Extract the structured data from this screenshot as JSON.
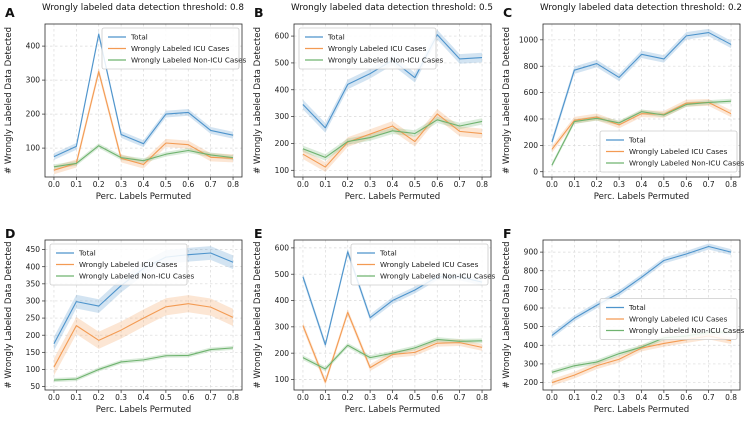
{
  "figure": {
    "background": "#ffffff"
  },
  "colors": {
    "total": "#4e94cc",
    "icu": "#f39b53",
    "non_icu": "#6fb36f",
    "grid": "#d9d9d9",
    "spine": "#2b2b2b",
    "tick_text": "#1a1a1a",
    "legend_border": "#cccccc",
    "legend_bg": "#ffffff"
  },
  "chart_data": [
    {
      "letter": "A",
      "type": "line",
      "title": "Wrongly labeled data detection threshold: 0.8",
      "xlabel": "Perc. Labels Permuted",
      "ylabel": "# Wrongly Labeled Data Detected",
      "x": [
        0.0,
        0.1,
        0.2,
        0.3,
        0.4,
        0.5,
        0.6,
        0.7,
        0.8
      ],
      "xlim": [
        -0.04,
        0.84
      ],
      "ylim": [
        15,
        465
      ],
      "yticks": [
        100,
        200,
        300,
        400
      ],
      "grid": true,
      "legend_pos": "upper-right",
      "series": [
        {
          "name": "Total",
          "color_key": "total",
          "band": 10,
          "values": [
            75,
            105,
            435,
            140,
            113,
            200,
            205,
            152,
            138
          ]
        },
        {
          "name": "Wrongly Labeled ICU Cases",
          "color_key": "icu",
          "band": 12,
          "values": [
            35,
            55,
            325,
            70,
            52,
            115,
            110,
            73,
            70
          ]
        },
        {
          "name": "Wrongly Labeled Non-ICU Cases",
          "color_key": "non_icu",
          "band": 7,
          "values": [
            45,
            55,
            107,
            72,
            63,
            82,
            93,
            80,
            72
          ]
        }
      ]
    },
    {
      "letter": "B",
      "type": "line",
      "title": "Wrongly labeled data detection threshold: 0.5",
      "xlabel": "Perc. Labels Permuted",
      "ylabel": "# Wrongly Labeled Data Detected",
      "x": [
        0.0,
        0.1,
        0.2,
        0.3,
        0.4,
        0.5,
        0.6,
        0.7,
        0.8
      ],
      "xlim": [
        -0.04,
        0.84
      ],
      "ylim": [
        75,
        645
      ],
      "yticks": [
        100,
        200,
        300,
        400,
        500,
        600
      ],
      "grid": true,
      "legend_pos": "upper-left",
      "series": [
        {
          "name": "Total",
          "color_key": "total",
          "band": 18,
          "values": [
            345,
            258,
            420,
            460,
            510,
            445,
            605,
            515,
            520
          ]
        },
        {
          "name": "Wrongly Labeled ICU Cases",
          "color_key": "icu",
          "band": 18,
          "values": [
            160,
            112,
            205,
            235,
            265,
            207,
            310,
            245,
            237
          ]
        },
        {
          "name": "Wrongly Labeled Non-ICU Cases",
          "color_key": "non_icu",
          "band": 12,
          "values": [
            180,
            148,
            207,
            222,
            247,
            237,
            288,
            265,
            282
          ]
        }
      ]
    },
    {
      "letter": "C",
      "type": "line",
      "title": "Wrongly labeled data detection threshold: 0.2",
      "xlabel": "Perc. Labels Permuted",
      "ylabel": "# Wrongly Labeled Data Detected",
      "x": [
        0.0,
        0.1,
        0.2,
        0.3,
        0.4,
        0.5,
        0.6,
        0.7,
        0.8
      ],
      "xlim": [
        -0.04,
        0.84
      ],
      "ylim": [
        -40,
        1120
      ],
      "yticks": [
        0,
        200,
        400,
        600,
        800,
        1000
      ],
      "grid": true,
      "legend_pos": "lower-right",
      "series": [
        {
          "name": "Total",
          "color_key": "total",
          "band": 28,
          "values": [
            225,
            770,
            820,
            715,
            890,
            855,
            1030,
            1055,
            965
          ]
        },
        {
          "name": "Wrongly Labeled ICU Cases",
          "color_key": "icu",
          "band": 26,
          "values": [
            170,
            390,
            415,
            355,
            440,
            435,
            520,
            525,
            440
          ]
        },
        {
          "name": "Wrongly Labeled Non-ICU Cases",
          "color_key": "non_icu",
          "band": 18,
          "values": [
            50,
            380,
            405,
            370,
            455,
            430,
            510,
            525,
            535
          ]
        }
      ]
    },
    {
      "letter": "D",
      "type": "line",
      "title": "",
      "xlabel": "Perc. Labels Permuted",
      "ylabel": "# Wrongly Labeled Data Detected",
      "x": [
        0.0,
        0.1,
        0.2,
        0.3,
        0.4,
        0.5,
        0.6,
        0.7,
        0.8
      ],
      "xlim": [
        -0.04,
        0.84
      ],
      "ylim": [
        40,
        478
      ],
      "yticks": [
        50,
        100,
        150,
        200,
        250,
        300,
        350,
        400,
        450
      ],
      "grid": true,
      "legend_pos": "upper-left",
      "series": [
        {
          "name": "Total",
          "color_key": "total",
          "band": 20,
          "values": [
            175,
            298,
            285,
            345,
            395,
            428,
            435,
            440,
            413
          ]
        },
        {
          "name": "Wrongly Labeled ICU Cases",
          "color_key": "icu",
          "band": 25,
          "values": [
            107,
            228,
            185,
            215,
            250,
            283,
            292,
            282,
            252
          ]
        },
        {
          "name": "Wrongly Labeled Non-ICU Cases",
          "color_key": "non_icu",
          "band": 6,
          "values": [
            69,
            72,
            100,
            122,
            128,
            140,
            141,
            158,
            163
          ]
        }
      ]
    },
    {
      "letter": "E",
      "type": "line",
      "title": "",
      "xlabel": "Perc. Labels Permuted",
      "ylabel": "# Wrongly Labeled Data Detected",
      "x": [
        0.0,
        0.1,
        0.2,
        0.3,
        0.4,
        0.5,
        0.6,
        0.7,
        0.8
      ],
      "xlim": [
        -0.04,
        0.84
      ],
      "ylim": [
        60,
        630
      ],
      "yticks": [
        100,
        200,
        300,
        400,
        500,
        600
      ],
      "grid": true,
      "legend_pos": "upper-right",
      "series": [
        {
          "name": "Total",
          "color_key": "total",
          "band": 13,
          "values": [
            490,
            232,
            585,
            335,
            400,
            440,
            490,
            490,
            470
          ]
        },
        {
          "name": "Wrongly Labeled ICU Cases",
          "color_key": "icu",
          "band": 13,
          "values": [
            305,
            90,
            355,
            145,
            195,
            203,
            238,
            240,
            222
          ]
        },
        {
          "name": "Wrongly Labeled Non-ICU Cases",
          "color_key": "non_icu",
          "band": 9,
          "values": [
            183,
            140,
            230,
            183,
            200,
            220,
            252,
            245,
            247
          ]
        }
      ]
    },
    {
      "letter": "F",
      "type": "line",
      "title": "",
      "xlabel": "Perc. Labels Permuted",
      "ylabel": "# Wrongly Labeled Data Detected",
      "x": [
        0.0,
        0.1,
        0.2,
        0.3,
        0.4,
        0.5,
        0.6,
        0.7,
        0.8
      ],
      "xlim": [
        -0.04,
        0.84
      ],
      "ylim": [
        160,
        965
      ],
      "yticks": [
        200,
        300,
        400,
        500,
        600,
        700,
        800,
        900
      ],
      "grid": true,
      "legend_pos": "center-right",
      "series": [
        {
          "name": "Total",
          "color_key": "total",
          "band": 16,
          "values": [
            453,
            545,
            615,
            680,
            765,
            855,
            890,
            930,
            900
          ]
        },
        {
          "name": "Wrongly Labeled ICU Cases",
          "color_key": "icu",
          "band": 18,
          "values": [
            200,
            240,
            290,
            325,
            385,
            410,
            430,
            450,
            425
          ]
        },
        {
          "name": "Wrongly Labeled Non-ICU Cases",
          "color_key": "non_icu",
          "band": 13,
          "values": [
            255,
            290,
            310,
            355,
            390,
            440,
            450,
            470,
            470
          ]
        }
      ]
    }
  ]
}
